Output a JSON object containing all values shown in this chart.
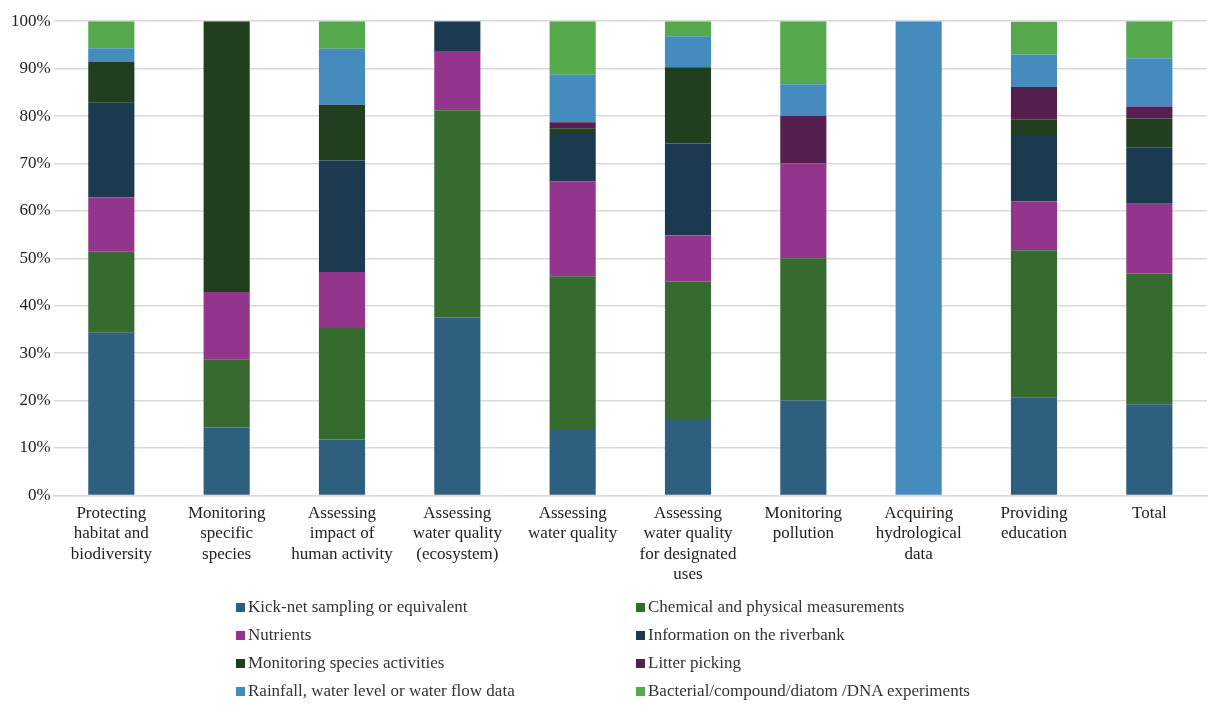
{
  "chart_data": {
    "type": "bar",
    "stacked": true,
    "categories": [
      "Protecting habitat and biodiversity",
      "Monitoring specific species",
      "Assessing impact of human activity",
      "Assessing water quality (ecosystem)",
      "Assessing water quality",
      "Assessing water quality for designated uses",
      "Monitoring pollution",
      "Acquiring hydrological data",
      "Providing education",
      "Total"
    ],
    "series": [
      {
        "name": "Kick-net sampling or equivalent",
        "color": "#2e5f7f",
        "values": [
          34.3,
          14.3,
          11.8,
          37.5,
          13.8,
          16.1,
          20,
          0,
          20.7,
          19.2
        ]
      },
      {
        "name": "Chemical and physical measurements",
        "color": "#366b2f",
        "values": [
          17.1,
          14.3,
          23.5,
          43.7,
          32.4,
          29.0,
          30,
          0,
          31.0,
          27.6
        ]
      },
      {
        "name": "Nutrients",
        "color": "#93358c",
        "values": [
          11.4,
          14.3,
          11.8,
          12.5,
          20,
          9.7,
          20,
          0,
          10.3,
          14.7
        ]
      },
      {
        "name": "Information on the riverbank",
        "color": "#1c3a4f",
        "values": [
          20,
          0,
          23.5,
          6.3,
          10,
          19.4,
          0,
          0,
          13.8,
          11.9
        ]
      },
      {
        "name": "Monitoring species activities",
        "color": "#213e1e",
        "values": [
          8.6,
          57.1,
          11.8,
          0,
          1.2,
          16.1,
          0,
          0,
          3.4,
          6.1
        ]
      },
      {
        "name": "Litter picking",
        "color": "#55204f",
        "values": [
          0,
          0,
          0,
          0,
          1.3,
          0,
          10,
          0,
          6.9,
          2.5
        ]
      },
      {
        "name": "Rainfall, water level or water flow data",
        "color": "#468bbd",
        "values": [
          2.9,
          0,
          11.8,
          0,
          10,
          6.5,
          6.7,
          100,
          6.9,
          10.2
        ]
      },
      {
        "name": "Bacterial/compound/diatom /DNA experiments",
        "color": "#55a84b",
        "values": [
          5.7,
          0,
          5.8,
          0,
          11.3,
          3.2,
          13.3,
          0,
          6.9,
          7.8
        ]
      }
    ],
    "ylim": [
      0,
      100
    ],
    "yticks": [
      {
        "value": 0,
        "label": "0%"
      },
      {
        "value": 10,
        "label": "10%"
      },
      {
        "value": 20,
        "label": "20%"
      },
      {
        "value": 30,
        "label": "30%"
      },
      {
        "value": 40,
        "label": "40%"
      },
      {
        "value": 50,
        "label": "50%"
      },
      {
        "value": 60,
        "label": "60%"
      },
      {
        "value": 70,
        "label": "70%"
      },
      {
        "value": 80,
        "label": "80%"
      },
      {
        "value": 90,
        "label": "90%"
      },
      {
        "value": 100,
        "label": "100%"
      }
    ],
    "grid": "y",
    "legend": "bottom"
  }
}
